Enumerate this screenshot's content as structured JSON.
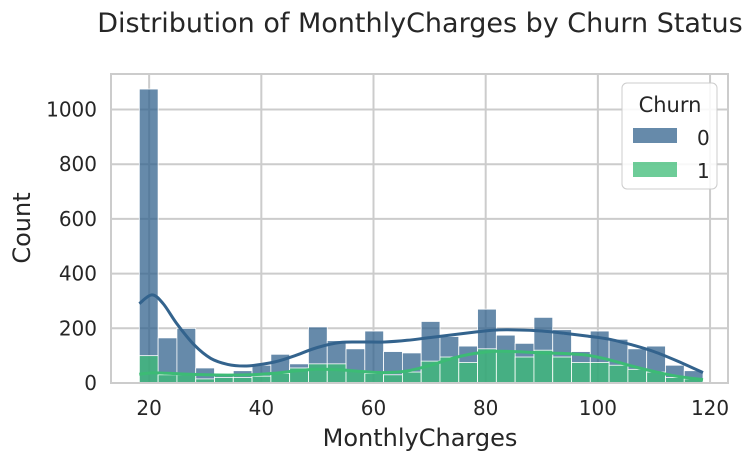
{
  "chart_data": {
    "type": "histogram",
    "title": "Distribution of MonthlyCharges by Churn Status",
    "xlabel": "MonthlyCharges",
    "ylabel": "Count",
    "xlim": [
      13.2,
      123.2
    ],
    "ylim": [
      0,
      1130
    ],
    "x_ticks": [
      20,
      40,
      60,
      80,
      100,
      120
    ],
    "y_ticks": [
      0,
      200,
      400,
      600,
      800,
      1000
    ],
    "grid": true,
    "bin_edges": [
      18.25,
      21.6,
      24.95,
      28.3,
      31.65,
      35.0,
      38.35,
      41.7,
      45.05,
      48.4,
      51.75,
      55.1,
      58.45,
      61.8,
      65.15,
      68.5,
      71.85,
      75.2,
      78.55,
      81.9,
      85.25,
      88.6,
      91.95,
      95.3,
      98.65,
      102.0,
      105.35,
      108.7,
      112.05,
      115.4,
      118.75
    ],
    "legend": {
      "title": "Churn",
      "placement": "top-right"
    },
    "series": [
      {
        "name": "0",
        "color": "#33638d",
        "counts": [
          1075,
          165,
          200,
          55,
          30,
          45,
          65,
          105,
          70,
          205,
          155,
          125,
          190,
          115,
          110,
          225,
          170,
          135,
          270,
          175,
          145,
          240,
          195,
          115,
          190,
          160,
          125,
          135,
          65,
          45
        ],
        "kde": [
          [
            18.25,
            290
          ],
          [
            20.5,
            322
          ],
          [
            22.5,
            290
          ],
          [
            25,
            215
          ],
          [
            28,
            140
          ],
          [
            31,
            90
          ],
          [
            34,
            68
          ],
          [
            37,
            62
          ],
          [
            40,
            68
          ],
          [
            43,
            80
          ],
          [
            46,
            100
          ],
          [
            50,
            130
          ],
          [
            54,
            148
          ],
          [
            58,
            150
          ],
          [
            62,
            150
          ],
          [
            66,
            156
          ],
          [
            70,
            166
          ],
          [
            74,
            176
          ],
          [
            78,
            186
          ],
          [
            82,
            194
          ],
          [
            86,
            194
          ],
          [
            90,
            190
          ],
          [
            94,
            182
          ],
          [
            98,
            172
          ],
          [
            102,
            160
          ],
          [
            106,
            140
          ],
          [
            110,
            115
          ],
          [
            114,
            82
          ],
          [
            118.75,
            38
          ]
        ]
      },
      {
        "name": "1",
        "color": "#3cbb75",
        "counts": [
          100,
          30,
          30,
          15,
          20,
          20,
          25,
          35,
          55,
          70,
          70,
          45,
          35,
          30,
          40,
          80,
          95,
          75,
          125,
          115,
          95,
          120,
          95,
          75,
          75,
          65,
          50,
          40,
          20,
          15
        ],
        "kde": [
          [
            18.25,
            32
          ],
          [
            20.5,
            37
          ],
          [
            23,
            36
          ],
          [
            26,
            33
          ],
          [
            30,
            30
          ],
          [
            34,
            29
          ],
          [
            38,
            30
          ],
          [
            42,
            35
          ],
          [
            46,
            44
          ],
          [
            50,
            50
          ],
          [
            54,
            48
          ],
          [
            58,
            42
          ],
          [
            62,
            38
          ],
          [
            66,
            44
          ],
          [
            70,
            64
          ],
          [
            74,
            90
          ],
          [
            78,
            108
          ],
          [
            82,
            116
          ],
          [
            86,
            114
          ],
          [
            90,
            110
          ],
          [
            94,
            108
          ],
          [
            98,
            102
          ],
          [
            102,
            85
          ],
          [
            106,
            62
          ],
          [
            110,
            42
          ],
          [
            114,
            25
          ],
          [
            118.75,
            12
          ]
        ]
      }
    ]
  }
}
